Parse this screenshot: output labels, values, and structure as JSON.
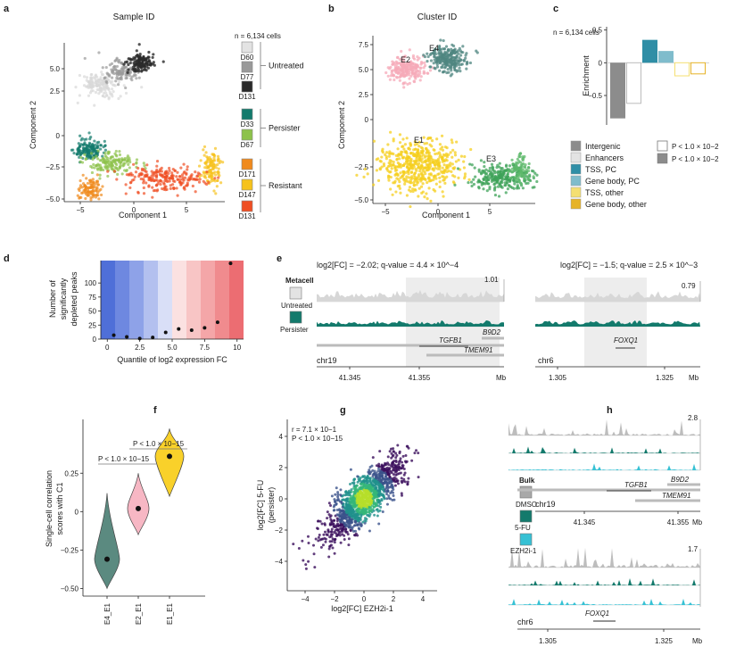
{
  "panels": {
    "a": {
      "letter": "a",
      "title": "Sample ID",
      "xlabel": "Component 1",
      "ylabel": "Component 2",
      "xticks": [
        "−5",
        "0",
        "5"
      ],
      "yticks": [
        "5.0",
        "2.5",
        "0",
        "−2.5",
        "−5.0"
      ],
      "n_cells": "n = 6,134 cells",
      "legend": [
        {
          "label": "D60",
          "color": "#e3e3e3"
        },
        {
          "label": "D77",
          "color": "#9a9a9a"
        },
        {
          "label": "D131",
          "color": "#2a2a2a"
        },
        {
          "label": "D33",
          "color": "#137a6c"
        },
        {
          "label": "D67",
          "color": "#8dc24b"
        },
        {
          "label": "D171",
          "color": "#f08a1d"
        },
        {
          "label": "D147",
          "color": "#f6c21c"
        },
        {
          "label": "D131",
          "color": "#ef4e23"
        }
      ],
      "groups": [
        "Untreated",
        "Persister",
        "Resistant"
      ]
    },
    "b": {
      "letter": "b",
      "title": "Cluster ID",
      "xlabel": "Component 1",
      "ylabel": "Component 2",
      "xticks": [
        "−5",
        "0",
        "5"
      ],
      "yticks": [
        "7.5",
        "5.0",
        "2.5",
        "0",
        "−2.5",
        "−5.0"
      ],
      "cluster_labels": [
        "E2",
        "E4",
        "E1",
        "E3"
      ]
    },
    "c": {
      "letter": "c",
      "n_cells": "n = 6,134 cells",
      "ylabel": "Enrichment",
      "yticks": [
        "0.5",
        "0",
        "−0.5"
      ],
      "legend": [
        {
          "label": "Intergenic",
          "color": "#8c8c8c"
        },
        {
          "label": "Enhancers",
          "color": "#e3e3e3"
        },
        {
          "label": "TSS, PC",
          "color": "#2f8ea6"
        },
        {
          "label": "Gene body, PC",
          "color": "#7fbccc"
        },
        {
          "label": "TSS, other",
          "color": "#f4df72"
        },
        {
          "label": "Gene body, other",
          "color": "#e6b326"
        }
      ],
      "sig_legend": [
        "P < 1.0 × 10^−2",
        "P < 1.0 × 10^−2"
      ]
    },
    "d": {
      "letter": "d",
      "xlabel": "Quantile of log2 expression FC",
      "ylabel_lines": [
        "Number of",
        "significantly",
        "depleted peaks"
      ],
      "xticks": [
        "0",
        "2.5",
        "5.0",
        "7.5",
        "10"
      ],
      "yticks": [
        "0",
        "25",
        "50",
        "75",
        "100"
      ]
    },
    "e": {
      "letter": "e",
      "left_header": "log2[FC] = −2.02; q-value = 4.4 × 10^−4",
      "right_header": "log2[FC] = −1.5; q-value = 2.5 × 10^−3",
      "metacell": "Metacell",
      "untreated": "Untreated",
      "persister": "Persister",
      "left_scale": "1.01",
      "right_scale": "0.79",
      "genes_left": [
        "TGFB1",
        "B9D2",
        "TMEM91"
      ],
      "genes_right": [
        "FOXQ1"
      ],
      "chr_left": "chr19",
      "chr_right": "chr6",
      "axis_left": [
        "41.345",
        "41.355",
        "Mb"
      ],
      "axis_right": [
        "1.305",
        "1.325",
        "Mb"
      ]
    },
    "f": {
      "letter": "f",
      "ylabel_lines": [
        "Single-cell correlation",
        "scores with C1"
      ],
      "yticks": [
        "0.25",
        "0",
        "−0.25",
        "−0.50"
      ],
      "categories": [
        "E4_E1",
        "E2_E1",
        "E1_E1"
      ],
      "pval_1": "P < 1.0 × 10^−15",
      "pval_2": "P < 1.0 × 10^−15"
    },
    "g": {
      "letter": "g",
      "r_text": "r = 7.1 × 10^−1",
      "p_text": "P < 1.0 × 10^−15",
      "xlabel": "log2[FC] EZH2i-1",
      "ylabel_lines": [
        "log2[FC] 5-FU",
        "(persister)"
      ],
      "xticks": [
        "−4",
        "−2",
        "0",
        "2",
        "4"
      ],
      "yticks": [
        "4",
        "2",
        "0",
        "−2",
        "−4"
      ]
    },
    "h": {
      "letter": "h",
      "scale_top": "2.8",
      "scale_bottom": "1.7",
      "bulk": "Bulk",
      "dmso": "DMSO",
      "fu": "5-FU",
      "ezh": "EZH2i-1",
      "genes_top": [
        "TGFB1",
        "B9D2",
        "TMEM91"
      ],
      "genes_bottom": [
        "FOXQ1"
      ],
      "chr_top": "chr19",
      "chr_bottom": "chr6",
      "axis_top": [
        "41.345",
        "41.355",
        "Mb"
      ],
      "axis_bottom": [
        "1.305",
        "1.325",
        "Mb"
      ]
    }
  },
  "chart_data": [
    {
      "type": "bar",
      "panel": "c",
      "categories": [
        "Intergenic",
        "Enhancers",
        "TSS, PC",
        "Gene body, PC",
        "TSS, other",
        "Gene body, other"
      ],
      "values": [
        -0.85,
        -0.62,
        0.35,
        0.18,
        -0.2,
        -0.17
      ],
      "ylim": [
        -0.95,
        0.55
      ],
      "ylabel": "Enrichment"
    },
    {
      "type": "scatter",
      "panel": "d",
      "x": [
        0.5,
        1.5,
        2.5,
        3.5,
        4.5,
        5.5,
        6.5,
        7.5,
        8.5,
        9.5
      ],
      "y": [
        7,
        4,
        1,
        3,
        12,
        18,
        16,
        20,
        30,
        135
      ],
      "xlim": [
        -0.5,
        10.5
      ],
      "ylim": [
        0,
        140
      ],
      "xlabel": "Quantile of log2 expression FC",
      "ylabel": "Number of significantly depleted peaks"
    },
    {
      "type": "violin",
      "panel": "f",
      "categories": [
        "E4_E1",
        "E2_E1",
        "E1_E1"
      ],
      "medians": [
        -0.31,
        0.02,
        0.36
      ],
      "ranges": [
        [
          -0.5,
          0.12
        ],
        [
          -0.15,
          0.25
        ],
        [
          0.1,
          0.54
        ]
      ],
      "colors": [
        "#5b8a80",
        "#f7b7c4",
        "#f9d12a"
      ],
      "ylim": [
        -0.55,
        0.6
      ]
    },
    {
      "type": "scatter",
      "panel": "g",
      "description_points": "density of ~4,000 peaks, positive correlation",
      "xlim": [
        -5,
        5
      ],
      "ylim": [
        -5,
        5
      ],
      "r": 0.71
    }
  ]
}
